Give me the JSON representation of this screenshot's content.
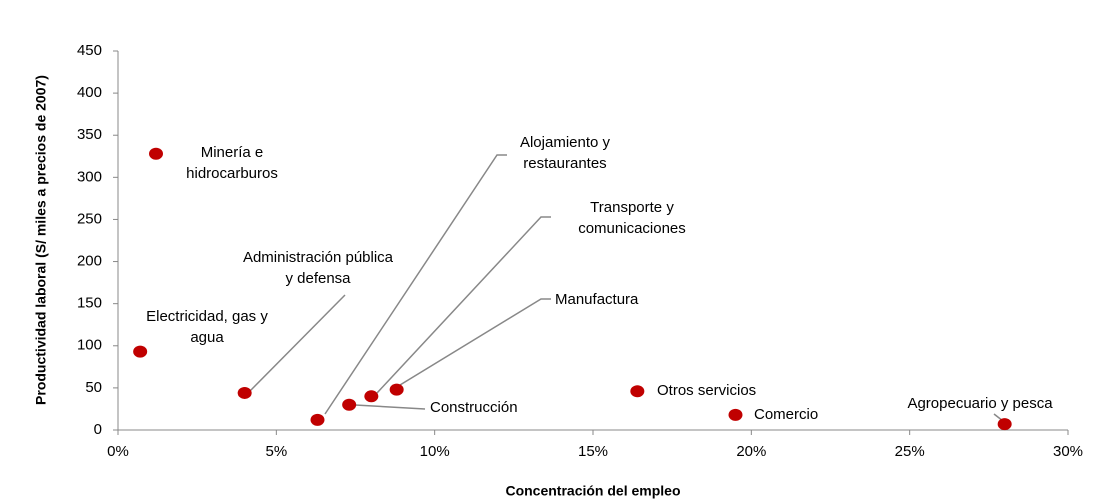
{
  "chart_data": {
    "type": "scatter",
    "x_label": "Concentración del empleo",
    "y_label": "Productividad laboral (S/ miles a precios  de 2007)",
    "color": "#c00000",
    "x": [
      1.2,
      0.7,
      4.0,
      6.3,
      7.3,
      8.0,
      8.8,
      16.4,
      19.5,
      28.0
    ],
    "values": [
      328,
      93,
      44,
      12,
      30,
      40,
      48,
      46,
      18,
      7
    ],
    "labels": [
      [
        "Minería e",
        "hidrocarburos"
      ],
      [
        "Electricidad, gas y",
        "agua"
      ],
      [
        "Administración pública",
        "y defensa"
      ],
      [
        "Alojamiento y",
        "restaurantes"
      ],
      [
        "Construcción"
      ],
      [
        "Transporte y",
        "comunicaciones"
      ],
      [
        "Manufactura"
      ],
      [
        "Otros servicios"
      ],
      [
        "Comercio"
      ],
      [
        "Agropecuario y pesca"
      ]
    ],
    "xlim": [
      0,
      30
    ],
    "xticks": [
      {
        "value": 0,
        "label": "0%"
      },
      {
        "value": 5,
        "label": "5%"
      },
      {
        "value": 10,
        "label": "10%"
      },
      {
        "value": 15,
        "label": "15%"
      },
      {
        "value": 20,
        "label": "20%"
      },
      {
        "value": 25,
        "label": "25%"
      },
      {
        "value": 30,
        "label": "30%"
      }
    ],
    "ylim": [
      0,
      450
    ],
    "yticks": [
      0,
      50,
      100,
      150,
      200,
      250,
      300,
      350,
      400,
      450
    ]
  }
}
